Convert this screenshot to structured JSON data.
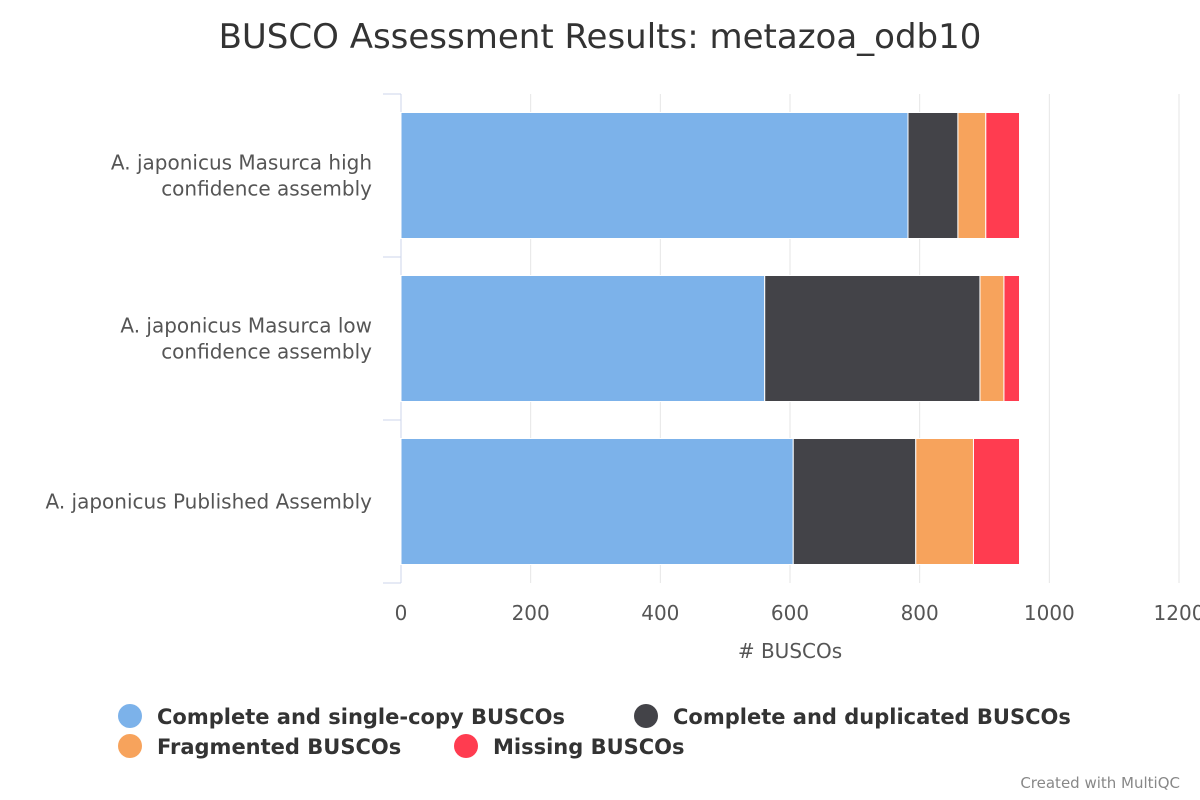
{
  "chart_data": {
    "type": "bar",
    "orientation": "horizontal",
    "stacked": true,
    "title": "BUSCO Assessment Results: metazoa_odb10",
    "xlabel": "# BUSCOs",
    "ylabel": "",
    "xlim": [
      0,
      1200
    ],
    "xticks": [
      "0",
      "200",
      "400",
      "600",
      "800",
      "1000",
      "1200"
    ],
    "grid": true,
    "legend_position": "bottom",
    "categories": [
      [
        "A. japonicus Masurca high",
        "confidence assembly"
      ],
      [
        "A. japonicus Masurca low",
        "confidence assembly"
      ],
      [
        "A. japonicus Published Assembly"
      ]
    ],
    "series": [
      {
        "name": "Complete and single-copy BUSCOs",
        "color": "#7cb2ea",
        "values": [
          782,
          561,
          605
        ]
      },
      {
        "name": "Complete and duplicated BUSCOs",
        "color": "#434348",
        "values": [
          77,
          332,
          189
        ]
      },
      {
        "name": "Fragmented BUSCOs",
        "color": "#f7a35c",
        "values": [
          43,
          37,
          89
        ]
      },
      {
        "name": "Missing BUSCOs",
        "color": "#ff3c50",
        "values": [
          52,
          24,
          71
        ]
      }
    ]
  },
  "credits": "Created with MultiQC"
}
